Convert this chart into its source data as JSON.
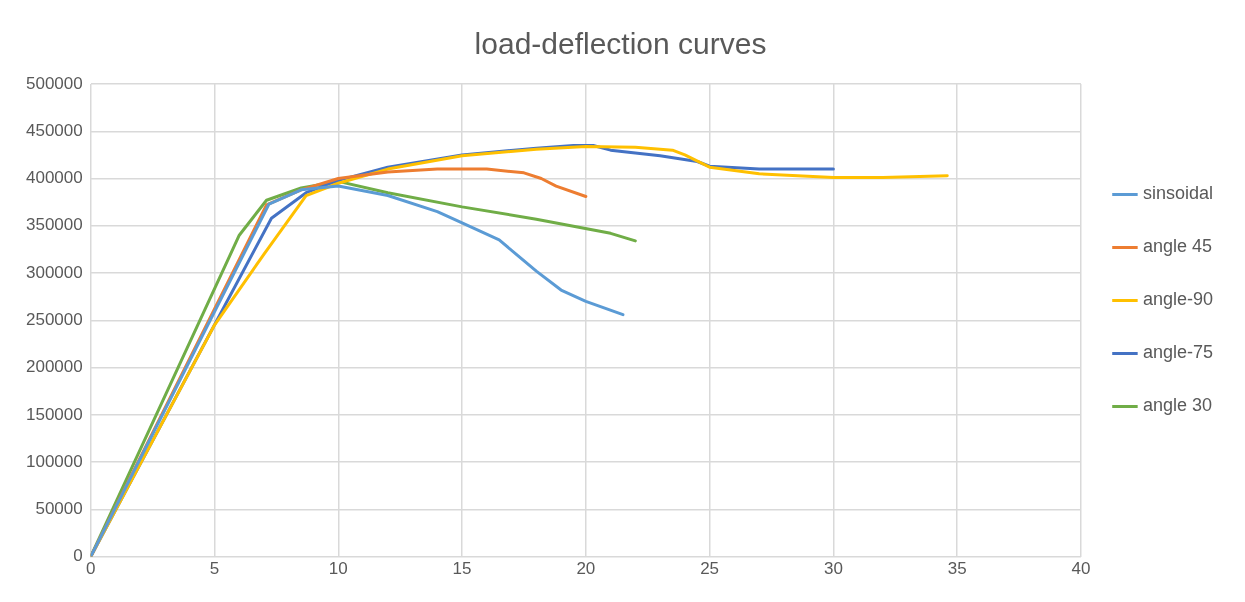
{
  "chart_data": {
    "type": "line",
    "title": "load-deflection curves",
    "xlim": [
      0,
      40
    ],
    "xticks": [
      0,
      5,
      10,
      15,
      20,
      25,
      30,
      35,
      40
    ],
    "ylim": [
      0,
      500000
    ],
    "yticks": [
      0,
      50000,
      100000,
      150000,
      200000,
      250000,
      300000,
      350000,
      400000,
      450000,
      500000
    ],
    "grid": true,
    "legend": "right",
    "marker": "none",
    "line_style": "solid",
    "series": [
      {
        "name": "sinsoidal",
        "color": "#5b9bd5",
        "x": [
          0,
          7.2,
          8.5,
          10,
          12,
          14,
          15,
          16.5,
          18,
          19,
          20,
          21.5
        ],
        "values": [
          0,
          373000,
          388000,
          392000,
          382000,
          365000,
          353000,
          335000,
          302000,
          282000,
          270000,
          256000
        ]
      },
      {
        "name": "angle 45",
        "color": "#ed7d31",
        "x": [
          0,
          7.1,
          8.5,
          10,
          12,
          14,
          16,
          17.5,
          18.2,
          18.8,
          20
        ],
        "values": [
          0,
          372000,
          388000,
          400000,
          407000,
          410000,
          410000,
          406000,
          400000,
          392000,
          381000
        ]
      },
      {
        "name": "angle-90",
        "color": "#ffc000",
        "x": [
          0,
          5,
          7,
          8.7,
          10,
          12,
          15,
          18,
          20,
          22,
          23.5,
          24,
          25,
          27,
          30,
          32,
          34.6
        ],
        "values": [
          0,
          245000,
          320000,
          382000,
          395000,
          410000,
          424000,
          431000,
          434000,
          433000,
          430000,
          425000,
          412000,
          405000,
          401000,
          401000,
          403000
        ]
      },
      {
        "name": "angle-75",
        "color": "#4472c4",
        "x": [
          0,
          7.3,
          8.7,
          10,
          12,
          15,
          18,
          19.5,
          20.3,
          21,
          23,
          24.5,
          25,
          27,
          30
        ],
        "values": [
          0,
          358000,
          385000,
          398000,
          412000,
          425000,
          432000,
          435000,
          435000,
          430000,
          424000,
          418000,
          413000,
          410000,
          410000
        ]
      },
      {
        "name": "angle 30",
        "color": "#70ad47",
        "x": [
          0,
          6,
          7.1,
          8.5,
          10,
          12,
          15,
          18,
          21,
          22
        ],
        "values": [
          0,
          340000,
          377000,
          390000,
          397000,
          385000,
          370000,
          357000,
          342000,
          334000
        ]
      }
    ]
  }
}
